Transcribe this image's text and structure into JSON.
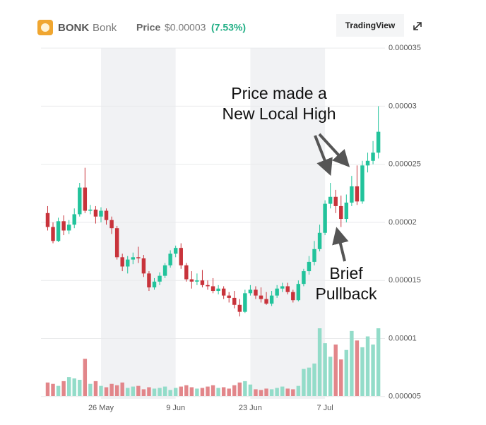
{
  "header": {
    "symbol": "BONK",
    "name": "Bonk",
    "price_label": "Price",
    "price": "$0.00003",
    "change": "(7.53%)",
    "button": "TradingView"
  },
  "chart_data": {
    "type": "candlestick",
    "categories": [
      null,
      null,
      null,
      null,
      null,
      null,
      null,
      null,
      null,
      null,
      "26 May",
      null,
      null,
      null,
      null,
      null,
      null,
      null,
      null,
      null,
      null,
      null,
      null,
      null,
      "9 Jun",
      null,
      null,
      null,
      null,
      null,
      null,
      null,
      null,
      null,
      null,
      null,
      null,
      null,
      "23 Jun",
      null,
      null,
      null,
      null,
      null,
      null,
      null,
      null,
      null,
      null,
      null,
      null,
      null,
      "7 Jul",
      null,
      null,
      null,
      null,
      null,
      null,
      null,
      null,
      null,
      null
    ],
    "open": [
      2.08e-05,
      1.96e-05,
      1.84e-05,
      2.01e-05,
      1.93e-05,
      1.98e-05,
      2.07e-05,
      2.3e-05,
      2.1e-05,
      2.11e-05,
      2.05e-05,
      2.1e-05,
      2.02e-05,
      1.95e-05,
      1.7e-05,
      1.62e-05,
      1.68e-05,
      1.7e-05,
      1.69e-05,
      1.56e-05,
      1.44e-05,
      1.49e-05,
      1.54e-05,
      1.63e-05,
      1.73e-05,
      1.78e-05,
      1.63e-05,
      1.51e-05,
      1.49e-05,
      1.5e-05,
      1.46e-05,
      1.45e-05,
      1.41e-05,
      1.43e-05,
      1.37e-05,
      1.35e-05,
      1.29e-05,
      1.23e-05,
      1.39e-05,
      1.42e-05,
      1.37e-05,
      1.34e-05,
      1.3e-05,
      1.37e-05,
      1.43e-05,
      1.45e-05,
      1.4e-05,
      1.33e-05,
      1.47e-05,
      1.58e-05,
      1.66e-05,
      1.77e-05,
      1.91e-05,
      2.16e-05,
      2.22e-05,
      2.14e-05,
      2.03e-05,
      2.17e-05,
      2.31e-05,
      2.18e-05,
      2.49e-05,
      2.53e-05,
      2.6e-05
    ],
    "close": [
      1.96e-05,
      1.84e-05,
      2.01e-05,
      1.93e-05,
      1.98e-05,
      2.07e-05,
      2.3e-05,
      2.1e-05,
      2.11e-05,
      2.05e-05,
      2.1e-05,
      2.02e-05,
      1.95e-05,
      1.7e-05,
      1.62e-05,
      1.68e-05,
      1.7e-05,
      1.69e-05,
      1.56e-05,
      1.44e-05,
      1.49e-05,
      1.54e-05,
      1.63e-05,
      1.73e-05,
      1.78e-05,
      1.63e-05,
      1.51e-05,
      1.49e-05,
      1.5e-05,
      1.46e-05,
      1.45e-05,
      1.41e-05,
      1.43e-05,
      1.37e-05,
      1.35e-05,
      1.29e-05,
      1.23e-05,
      1.39e-05,
      1.42e-05,
      1.37e-05,
      1.34e-05,
      1.3e-05,
      1.37e-05,
      1.43e-05,
      1.45e-05,
      1.4e-05,
      1.33e-05,
      1.47e-05,
      1.58e-05,
      1.66e-05,
      1.77e-05,
      1.91e-05,
      2.16e-05,
      2.22e-05,
      2.14e-05,
      2.03e-05,
      2.17e-05,
      2.31e-05,
      2.18e-05,
      2.49e-05,
      2.53e-05,
      2.6e-05,
      2.78e-05
    ],
    "high": [
      2.14e-05,
      2e-05,
      2.04e-05,
      2.06e-05,
      2.02e-05,
      2.12e-05,
      2.34e-05,
      2.47e-05,
      2.15e-05,
      2.14e-05,
      2.13e-05,
      2.12e-05,
      2.05e-05,
      1.97e-05,
      1.73e-05,
      1.71e-05,
      1.74e-05,
      1.79e-05,
      1.72e-05,
      1.58e-05,
      1.52e-05,
      1.57e-05,
      1.65e-05,
      1.76e-05,
      1.8e-05,
      1.82e-05,
      1.65e-05,
      1.58e-05,
      1.56e-05,
      1.59e-05,
      1.5e-05,
      1.52e-05,
      1.46e-05,
      1.45e-05,
      1.4e-05,
      1.41e-05,
      1.34e-05,
      1.42e-05,
      1.46e-05,
      1.45e-05,
      1.44e-05,
      1.4e-05,
      1.41e-05,
      1.46e-05,
      1.48e-05,
      1.48e-05,
      1.42e-05,
      1.5e-05,
      1.6e-05,
      1.71e-05,
      1.84e-05,
      1.98e-05,
      2.19e-05,
      2.34e-05,
      2.28e-05,
      2.23e-05,
      2.24e-05,
      2.4e-05,
      2.49e-05,
      2.53e-05,
      2.6e-05,
      2.7e-05,
      3e-05
    ],
    "low": [
      1.93e-05,
      1.82e-05,
      1.83e-05,
      1.89e-05,
      1.9e-05,
      1.95e-05,
      2.05e-05,
      2.08e-05,
      2.07e-05,
      1.99e-05,
      2e-05,
      1.98e-05,
      1.9e-05,
      1.68e-05,
      1.58e-05,
      1.56e-05,
      1.64e-05,
      1.65e-05,
      1.53e-05,
      1.41e-05,
      1.42e-05,
      1.46e-05,
      1.52e-05,
      1.61e-05,
      1.7e-05,
      1.6e-05,
      1.49e-05,
      1.43e-05,
      1.46e-05,
      1.44e-05,
      1.42e-05,
      1.39e-05,
      1.38e-05,
      1.34e-05,
      1.31e-05,
      1.26e-05,
      1.19e-05,
      1.22e-05,
      1.37e-05,
      1.34e-05,
      1.31e-05,
      1.29e-05,
      1.28e-05,
      1.35e-05,
      1.4e-05,
      1.38e-05,
      1.31e-05,
      1.32e-05,
      1.45e-05,
      1.55e-05,
      1.63e-05,
      1.75e-05,
      1.89e-05,
      2.12e-05,
      2.08e-05,
      1.96e-05,
      2e-05,
      2.14e-05,
      2.15e-05,
      2.16e-05,
      2.43e-05,
      2.5e-05,
      2.55e-05
    ],
    "volume": [
      20,
      18,
      15,
      22,
      28,
      26,
      24,
      55,
      18,
      22,
      15,
      13,
      18,
      16,
      20,
      12,
      14,
      15,
      10,
      13,
      11,
      12,
      14,
      9,
      12,
      14,
      16,
      13,
      11,
      12,
      14,
      16,
      12,
      13,
      11,
      16,
      20,
      22,
      17,
      10,
      9,
      11,
      10,
      12,
      14,
      11,
      10,
      15,
      40,
      42,
      48,
      100,
      78,
      58,
      76,
      54,
      68,
      96,
      82,
      72,
      88,
      76,
      100
    ],
    "up_color": "#22c39b",
    "down_color": "#c8333b",
    "up_volume_color": "#93dcc9",
    "down_volume_color": "#e2868a",
    "ylim": [
      4.5e-06,
      3.58e-05
    ],
    "yticks": [
      3.5e-05,
      3e-05,
      2.5e-05,
      2e-05,
      1.5e-05,
      1e-05,
      5e-06
    ],
    "grid": true,
    "annotations": [
      {
        "lines": [
          "Price made a",
          "New Local High"
        ]
      },
      {
        "lines": [
          "Brief",
          "Pullback"
        ]
      }
    ]
  }
}
